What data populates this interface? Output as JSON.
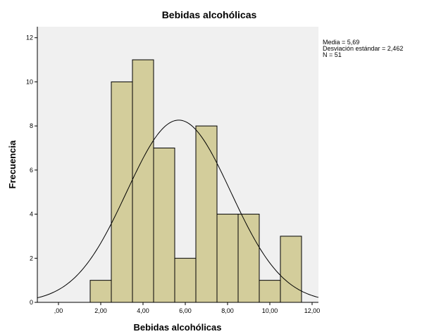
{
  "chart_data": {
    "type": "bar",
    "subtype": "histogram",
    "title": "Bebidas alcohólicas",
    "xlabel": "Bebidas alcohólicas",
    "ylabel": "Frecuencia",
    "xlim": [
      -1.0,
      12.3
    ],
    "ylim": [
      0,
      12.5
    ],
    "xticks": [
      0,
      2,
      4,
      6,
      8,
      10,
      12
    ],
    "xtick_labels": [
      ",00",
      "2,00",
      "4,00",
      "6,00",
      "8,00",
      "10,00",
      "12,00"
    ],
    "yticks": [
      0,
      2,
      4,
      6,
      8,
      10,
      12
    ],
    "ytick_labels": [
      "0",
      "2",
      "4",
      "6",
      "8",
      "10",
      "12"
    ],
    "bin_width": 1.0,
    "bins": [
      {
        "start": 1.5,
        "end": 2.5,
        "count": 1
      },
      {
        "start": 2.5,
        "end": 3.5,
        "count": 10
      },
      {
        "start": 3.5,
        "end": 4.5,
        "count": 11
      },
      {
        "start": 4.5,
        "end": 5.5,
        "count": 7
      },
      {
        "start": 5.5,
        "end": 6.5,
        "count": 2
      },
      {
        "start": 6.5,
        "end": 7.5,
        "count": 8
      },
      {
        "start": 7.5,
        "end": 8.5,
        "count": 4
      },
      {
        "start": 8.5,
        "end": 9.5,
        "count": 4
      },
      {
        "start": 9.5,
        "end": 10.5,
        "count": 1
      },
      {
        "start": 10.5,
        "end": 11.5,
        "count": 3
      }
    ],
    "normal_curve": {
      "mean": 5.69,
      "std": 2.462,
      "n": 51
    },
    "grid": false,
    "colors": {
      "bar_fill": "#d3cd9b",
      "bar_stroke": "#000000",
      "plot_background": "#f0f0f0",
      "curve": "#000000"
    }
  },
  "stats": {
    "mean_label": "Media = 5,69",
    "std_label": "Desviación estándar = 2,462",
    "n_label": "N = 51"
  }
}
